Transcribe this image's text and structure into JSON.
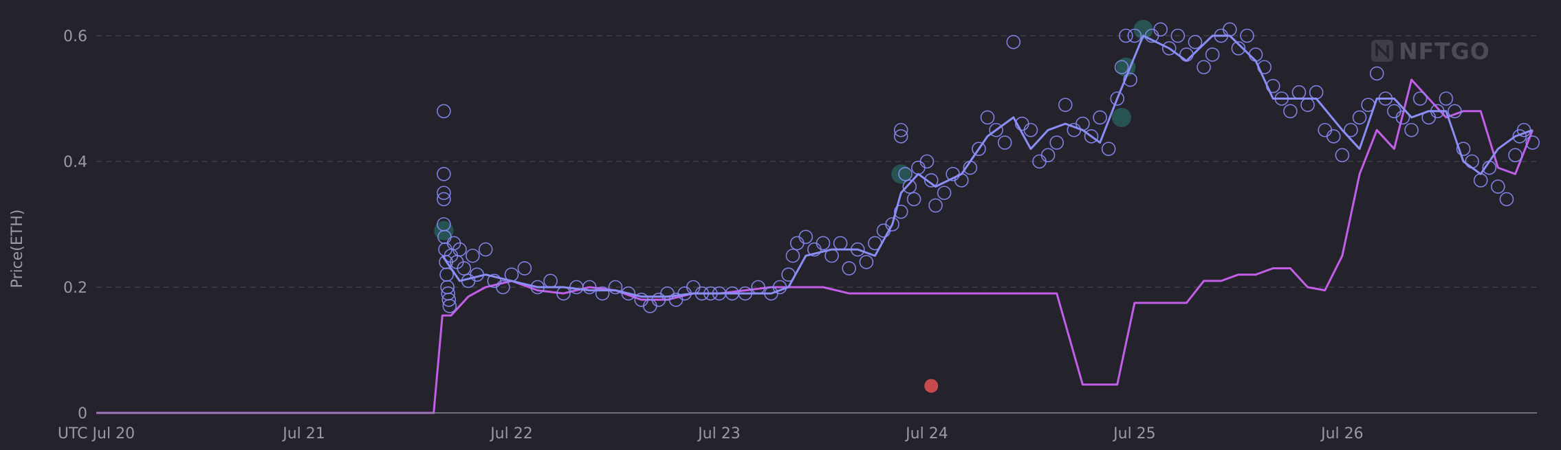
{
  "watermark": {
    "text": "NFTGO",
    "icon": "nftgo-logo-icon"
  },
  "colors": {
    "background": "#24232b",
    "sales": "#8a8cf8",
    "average": "#8b8ef5",
    "floor": "#c25ee8",
    "highlight": "#2f8f86",
    "outlier": "#c84a4a"
  },
  "chart_data": {
    "type": "scatter",
    "ylabel": "Price(ETH)",
    "xlabel": "",
    "ylim": [
      0,
      0.6
    ],
    "yticks": [
      0,
      0.2,
      0.4,
      0.6
    ],
    "ytick_labels": [
      "0",
      "0.2",
      "0.4",
      "0.6"
    ],
    "xlim": [
      "Jul 20 00:00",
      "Jul 26 22:30"
    ],
    "xticks": [
      "UTC Jul 20",
      "Jul 21",
      "Jul 22",
      "Jul 23",
      "Jul 24",
      "Jul 25",
      "Jul 26"
    ],
    "grid": "horizontal dashed",
    "legend": "none",
    "series": [
      {
        "kind": "line",
        "x": [
          "Jul 20 00:00",
          "Jul 21 15:00",
          "Jul 21 16:00",
          "Jul 21 17:00",
          "Jul 21 19:00",
          "Jul 21 21:00",
          "Jul 22 00:00",
          "Jul 22 03:00",
          "Jul 22 06:00",
          "Jul 22 09:00",
          "Jul 22 12:00",
          "Jul 22 15:00",
          "Jul 22 18:00",
          "Jul 22 21:00",
          "Jul 23 00:00",
          "Jul 23 03:00",
          "Jul 23 06:00",
          "Jul 23 09:00",
          "Jul 23 12:00",
          "Jul 23 15:00",
          "Jul 23 18:00",
          "Jul 23 21:00",
          "Jul 24 00:00",
          "Jul 24 03:00",
          "Jul 24 06:00",
          "Jul 24 09:00",
          "Jul 24 12:00",
          "Jul 24 15:00",
          "Jul 24 18:00",
          "Jul 24 20:00",
          "Jul 24 22:00",
          "Jul 25 00:00",
          "Jul 25 02:00",
          "Jul 25 04:00",
          "Jul 25 06:00",
          "Jul 25 08:00",
          "Jul 25 10:00",
          "Jul 25 12:00",
          "Jul 25 14:00",
          "Jul 25 16:00",
          "Jul 25 18:00",
          "Jul 25 20:00",
          "Jul 25 22:00",
          "Jul 26 00:00",
          "Jul 26 02:00",
          "Jul 26 04:00",
          "Jul 26 06:00",
          "Jul 26 08:00",
          "Jul 26 10:00",
          "Jul 26 12:00",
          "Jul 26 14:00",
          "Jul 26 16:00",
          "Jul 26 18:00",
          "Jul 26 20:00",
          "Jul 26 22:00"
        ],
        "y": [
          0,
          0,
          0.155,
          0.155,
          0.185,
          0.2,
          0.21,
          0.195,
          0.19,
          0.2,
          0.195,
          0.18,
          0.18,
          0.19,
          0.19,
          0.195,
          0.2,
          0.2,
          0.2,
          0.19,
          0.19,
          0.19,
          0.19,
          0.19,
          0.19,
          0.19,
          0.19,
          0.19,
          0.045,
          0.045,
          0.045,
          0.175,
          0.175,
          0.175,
          0.175,
          0.21,
          0.21,
          0.22,
          0.22,
          0.23,
          0.23,
          0.2,
          0.195,
          0.25,
          0.38,
          0.45,
          0.42,
          0.53,
          0.5,
          0.47,
          0.48,
          0.48,
          0.39,
          0.38,
          0.45
        ]
      },
      {
        "kind": "line",
        "x": [
          "Jul 21 16:00",
          "Jul 21 18:00",
          "Jul 21 21:00",
          "Jul 22 00:00",
          "Jul 22 03:00",
          "Jul 22 06:00",
          "Jul 22 09:00",
          "Jul 22 12:00",
          "Jul 22 15:00",
          "Jul 22 18:00",
          "Jul 22 21:00",
          "Jul 23 00:00",
          "Jul 23 03:00",
          "Jul 23 06:00",
          "Jul 23 08:00",
          "Jul 23 10:00",
          "Jul 23 13:00",
          "Jul 23 16:00",
          "Jul 23 18:00",
          "Jul 23 20:00",
          "Jul 23 21:00",
          "Jul 23 23:00",
          "Jul 24 01:00",
          "Jul 24 04:00",
          "Jul 24 07:00",
          "Jul 24 10:00",
          "Jul 24 12:00",
          "Jul 24 14:00",
          "Jul 24 16:00",
          "Jul 24 18:00",
          "Jul 24 20:00",
          "Jul 24 22:00",
          "Jul 25 01:00",
          "Jul 25 04:00",
          "Jul 25 06:00",
          "Jul 25 09:00",
          "Jul 25 11:00",
          "Jul 25 14:00",
          "Jul 25 16:00",
          "Jul 25 18:00",
          "Jul 25 21:00",
          "Jul 26 00:00",
          "Jul 26 02:00",
          "Jul 26 04:00",
          "Jul 26 06:00",
          "Jul 26 08:00",
          "Jul 26 10:00",
          "Jul 26 12:00",
          "Jul 26 14:00",
          "Jul 26 16:00",
          "Jul 26 18:00",
          "Jul 26 20:00",
          "Jul 26 22:00"
        ],
        "y": [
          0.25,
          0.21,
          0.22,
          0.21,
          0.2,
          0.2,
          0.195,
          0.195,
          0.185,
          0.185,
          0.19,
          0.19,
          0.19,
          0.19,
          0.2,
          0.25,
          0.26,
          0.26,
          0.25,
          0.3,
          0.35,
          0.38,
          0.36,
          0.38,
          0.44,
          0.47,
          0.42,
          0.45,
          0.46,
          0.45,
          0.43,
          0.5,
          0.6,
          0.58,
          0.56,
          0.6,
          0.6,
          0.56,
          0.5,
          0.5,
          0.5,
          0.45,
          0.42,
          0.5,
          0.5,
          0.47,
          0.48,
          0.48,
          0.4,
          0.38,
          0.42,
          0.44,
          0.45
        ]
      }
    ],
    "scatter_points": [
      [
        "Jul 21 16:10",
        0.48
      ],
      [
        "Jul 21 16:10",
        0.38
      ],
      [
        "Jul 21 16:10",
        0.35
      ],
      [
        "Jul 21 16:10",
        0.34
      ],
      [
        "Jul 21 16:10",
        0.3
      ],
      [
        "Jul 21 16:15",
        0.28
      ],
      [
        "Jul 21 16:20",
        0.26
      ],
      [
        "Jul 21 16:25",
        0.24
      ],
      [
        "Jul 21 16:30",
        0.22
      ],
      [
        "Jul 21 16:35",
        0.2
      ],
      [
        "Jul 21 16:40",
        0.19
      ],
      [
        "Jul 21 16:45",
        0.18
      ],
      [
        "Jul 21 16:50",
        0.17
      ],
      [
        "Jul 21 17:00",
        0.25
      ],
      [
        "Jul 21 17:20",
        0.27
      ],
      [
        "Jul 21 17:40",
        0.24
      ],
      [
        "Jul 21 18:00",
        0.26
      ],
      [
        "Jul 21 18:30",
        0.23
      ],
      [
        "Jul 21 19:00",
        0.21
      ],
      [
        "Jul 21 19:30",
        0.25
      ],
      [
        "Jul 21 20:00",
        0.22
      ],
      [
        "Jul 21 21:00",
        0.26
      ],
      [
        "Jul 21 22:00",
        0.21
      ],
      [
        "Jul 21 23:00",
        0.2
      ],
      [
        "Jul 22 00:00",
        0.22
      ],
      [
        "Jul 22 01:30",
        0.23
      ],
      [
        "Jul 22 03:00",
        0.2
      ],
      [
        "Jul 22 04:30",
        0.21
      ],
      [
        "Jul 22 06:00",
        0.19
      ],
      [
        "Jul 22 07:30",
        0.2
      ],
      [
        "Jul 22 09:00",
        0.2
      ],
      [
        "Jul 22 10:30",
        0.19
      ],
      [
        "Jul 22 12:00",
        0.2
      ],
      [
        "Jul 22 13:30",
        0.19
      ],
      [
        "Jul 22 15:00",
        0.18
      ],
      [
        "Jul 22 16:00",
        0.17
      ],
      [
        "Jul 22 17:00",
        0.18
      ],
      [
        "Jul 22 18:00",
        0.19
      ],
      [
        "Jul 22 19:00",
        0.18
      ],
      [
        "Jul 22 20:00",
        0.19
      ],
      [
        "Jul 22 21:00",
        0.2
      ],
      [
        "Jul 22 22:00",
        0.19
      ],
      [
        "Jul 22 23:00",
        0.19
      ],
      [
        "Jul 23 00:00",
        0.19
      ],
      [
        "Jul 23 01:30",
        0.19
      ],
      [
        "Jul 23 03:00",
        0.19
      ],
      [
        "Jul 23 04:30",
        0.2
      ],
      [
        "Jul 23 06:00",
        0.19
      ],
      [
        "Jul 23 07:00",
        0.2
      ],
      [
        "Jul 23 08:00",
        0.22
      ],
      [
        "Jul 23 08:30",
        0.25
      ],
      [
        "Jul 23 09:00",
        0.27
      ],
      [
        "Jul 23 10:00",
        0.28
      ],
      [
        "Jul 23 11:00",
        0.26
      ],
      [
        "Jul 23 12:00",
        0.27
      ],
      [
        "Jul 23 13:00",
        0.25
      ],
      [
        "Jul 23 14:00",
        0.27
      ],
      [
        "Jul 23 15:00",
        0.23
      ],
      [
        "Jul 23 16:00",
        0.26
      ],
      [
        "Jul 23 17:00",
        0.24
      ],
      [
        "Jul 23 18:00",
        0.27
      ],
      [
        "Jul 23 19:00",
        0.29
      ],
      [
        "Jul 23 20:00",
        0.3
      ],
      [
        "Jul 23 21:00",
        0.32
      ],
      [
        "Jul 23 21:00",
        0.44
      ],
      [
        "Jul 23 21:00",
        0.45
      ],
      [
        "Jul 23 21:30",
        0.38
      ],
      [
        "Jul 23 22:00",
        0.36
      ],
      [
        "Jul 23 22:30",
        0.34
      ],
      [
        "Jul 23 23:00",
        0.39
      ],
      [
        "Jul 24 00:00",
        0.4
      ],
      [
        "Jul 24 00:30",
        0.37
      ],
      [
        "Jul 24 01:00",
        0.33
      ],
      [
        "Jul 24 02:00",
        0.35
      ],
      [
        "Jul 24 03:00",
        0.38
      ],
      [
        "Jul 24 04:00",
        0.37
      ],
      [
        "Jul 24 05:00",
        0.39
      ],
      [
        "Jul 24 06:00",
        0.42
      ],
      [
        "Jul 24 07:00",
        0.47
      ],
      [
        "Jul 24 08:00",
        0.45
      ],
      [
        "Jul 24 09:00",
        0.43
      ],
      [
        "Jul 24 10:00",
        0.59
      ],
      [
        "Jul 24 11:00",
        0.46
      ],
      [
        "Jul 24 12:00",
        0.45
      ],
      [
        "Jul 24 13:00",
        0.4
      ],
      [
        "Jul 24 14:00",
        0.41
      ],
      [
        "Jul 24 15:00",
        0.43
      ],
      [
        "Jul 24 16:00",
        0.49
      ],
      [
        "Jul 24 17:00",
        0.45
      ],
      [
        "Jul 24 18:00",
        0.46
      ],
      [
        "Jul 24 19:00",
        0.44
      ],
      [
        "Jul 24 20:00",
        0.47
      ],
      [
        "Jul 24 21:00",
        0.42
      ],
      [
        "Jul 24 22:00",
        0.5
      ],
      [
        "Jul 24 22:30",
        0.55
      ],
      [
        "Jul 24 23:00",
        0.6
      ],
      [
        "Jul 24 23:30",
        0.53
      ],
      [
        "Jul 25 00:00",
        0.6
      ],
      [
        "Jul 25 02:00",
        0.6
      ],
      [
        "Jul 25 03:00",
        0.61
      ],
      [
        "Jul 25 04:00",
        0.58
      ],
      [
        "Jul 25 05:00",
        0.6
      ],
      [
        "Jul 25 06:00",
        0.57
      ],
      [
        "Jul 25 07:00",
        0.59
      ],
      [
        "Jul 25 08:00",
        0.55
      ],
      [
        "Jul 25 09:00",
        0.57
      ],
      [
        "Jul 25 10:00",
        0.6
      ],
      [
        "Jul 25 11:00",
        0.61
      ],
      [
        "Jul 25 12:00",
        0.58
      ],
      [
        "Jul 25 13:00",
        0.6
      ],
      [
        "Jul 25 14:00",
        0.57
      ],
      [
        "Jul 25 15:00",
        0.55
      ],
      [
        "Jul 25 16:00",
        0.52
      ],
      [
        "Jul 25 17:00",
        0.5
      ],
      [
        "Jul 25 18:00",
        0.48
      ],
      [
        "Jul 25 19:00",
        0.51
      ],
      [
        "Jul 25 20:00",
        0.49
      ],
      [
        "Jul 25 21:00",
        0.51
      ],
      [
        "Jul 25 22:00",
        0.45
      ],
      [
        "Jul 25 23:00",
        0.44
      ],
      [
        "Jul 26 00:00",
        0.41
      ],
      [
        "Jul 26 01:00",
        0.45
      ],
      [
        "Jul 26 02:00",
        0.47
      ],
      [
        "Jul 26 03:00",
        0.49
      ],
      [
        "Jul 26 04:00",
        0.54
      ],
      [
        "Jul 26 05:00",
        0.5
      ],
      [
        "Jul 26 06:00",
        0.48
      ],
      [
        "Jul 26 07:00",
        0.47
      ],
      [
        "Jul 26 08:00",
        0.45
      ],
      [
        "Jul 26 09:00",
        0.5
      ],
      [
        "Jul 26 10:00",
        0.47
      ],
      [
        "Jul 26 11:00",
        0.48
      ],
      [
        "Jul 26 12:00",
        0.5
      ],
      [
        "Jul 26 13:00",
        0.48
      ],
      [
        "Jul 26 14:00",
        0.42
      ],
      [
        "Jul 26 15:00",
        0.4
      ],
      [
        "Jul 26 16:00",
        0.37
      ],
      [
        "Jul 26 17:00",
        0.39
      ],
      [
        "Jul 26 18:00",
        0.36
      ],
      [
        "Jul 26 19:00",
        0.34
      ],
      [
        "Jul 26 20:00",
        0.41
      ],
      [
        "Jul 26 20:30",
        0.44
      ],
      [
        "Jul 26 21:00",
        0.45
      ],
      [
        "Jul 26 22:00",
        0.43
      ]
    ],
    "highlight_points": [
      [
        "Jul 21 16:10",
        0.29
      ],
      [
        "Jul 23 21:00",
        0.38
      ],
      [
        "Jul 24 22:30",
        0.47
      ],
      [
        "Jul 24 23:00",
        0.55
      ],
      [
        "Jul 25 01:00",
        0.61
      ]
    ],
    "outlier_point": [
      "Jul 24 00:30",
      0.043
    ]
  }
}
